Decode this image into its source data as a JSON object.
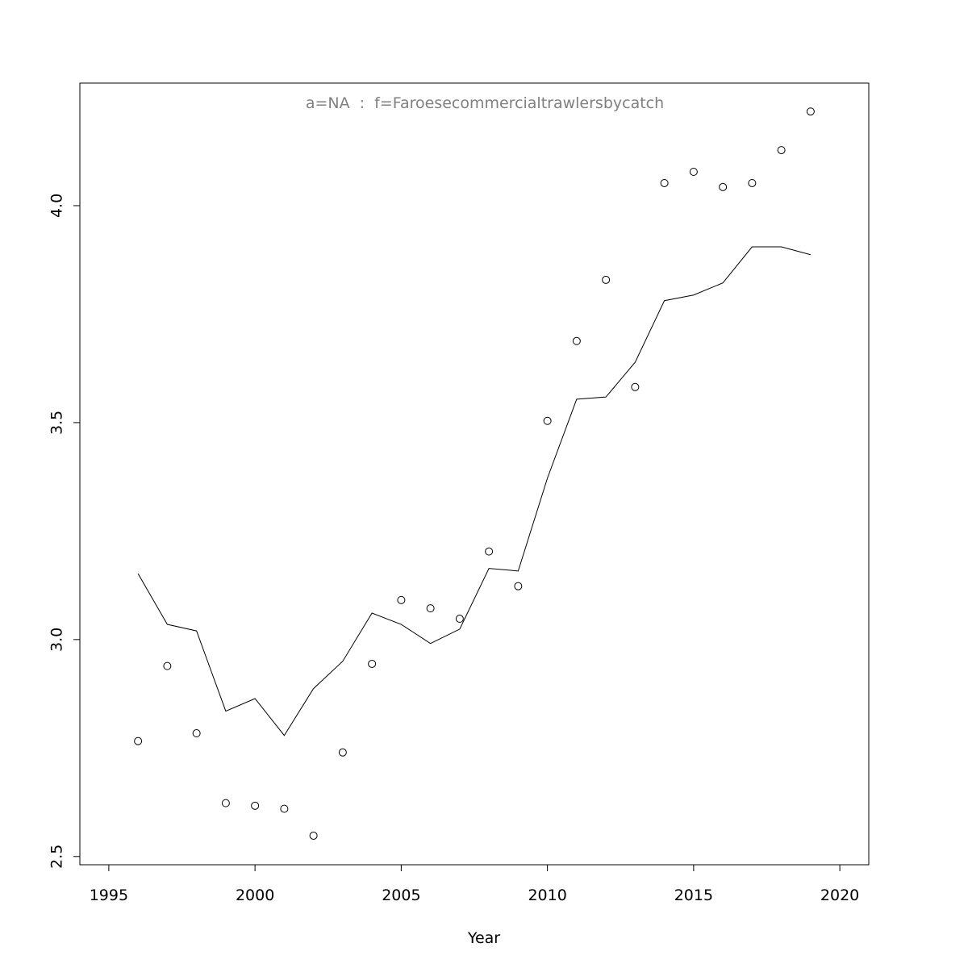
{
  "chart_data": {
    "type": "line",
    "title": "a=NA  :  f=Faroesecommercialtrawlersbycatch",
    "x_label": "Year",
    "x": [
      1996,
      1997,
      1998,
      1999,
      2000,
      2001,
      2002,
      2003,
      2004,
      2005,
      2006,
      2007,
      2008,
      2009,
      2010,
      2011,
      2012,
      2013,
      2014,
      2015,
      2016,
      2017,
      2018,
      2019
    ],
    "series": [
      {
        "style": "points",
        "color": "#000000",
        "values": [
          2.766,
          2.939,
          2.784,
          2.623,
          2.617,
          2.61,
          2.548,
          2.74,
          2.944,
          3.091,
          3.072,
          3.048,
          3.203,
          3.123,
          3.504,
          3.688,
          3.829,
          3.582,
          4.052,
          4.078,
          4.043,
          4.052,
          4.128,
          4.217
        ]
      },
      {
        "style": "line",
        "color": "#000000",
        "values": [
          3.152,
          3.035,
          3.02,
          2.835,
          2.864,
          2.779,
          2.887,
          2.95,
          3.061,
          3.035,
          2.991,
          3.024,
          3.164,
          3.158,
          3.372,
          3.554,
          3.559,
          3.639,
          3.781,
          3.794,
          3.822,
          3.905,
          3.905,
          3.887
        ]
      }
    ],
    "xlim": [
      1994.01,
      2020.99
    ],
    "ylim": [
      2.481,
      4.2825
    ],
    "xticks": [
      1995,
      2000,
      2005,
      2010,
      2015,
      2020
    ],
    "yticks": [
      2.5,
      {
        "value": 3,
        "label": "3.0"
      },
      3.5,
      {
        "value": 4,
        "label": "4.0"
      }
    ]
  }
}
